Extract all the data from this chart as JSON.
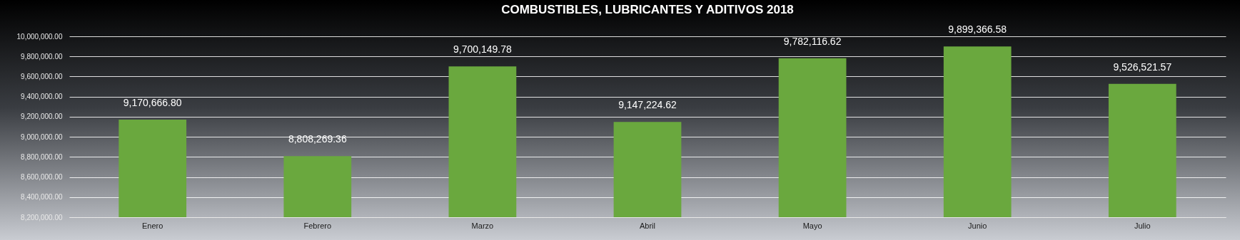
{
  "chart_data": {
    "type": "bar",
    "title": "COMBUSTIBLES, LUBRICANTES Y ADITIVOS 2018",
    "categories": [
      "Enero",
      "Febrero",
      "Marzo",
      "Abril",
      "Mayo",
      "Junio",
      "Julio"
    ],
    "values": [
      9170666.8,
      8808269.36,
      9700149.78,
      9147224.62,
      9782116.62,
      9899366.58,
      9526521.57
    ],
    "value_labels": [
      "9,170,666.80",
      "8,808,269.36",
      "9,700,149.78",
      "9,147,224.62",
      "9,782,116.62",
      "9,899,366.58",
      "9,526,521.57"
    ],
    "color": "#6aa83e",
    "ylim": [
      8200000,
      10000000
    ],
    "yticks": [
      {
        "value": 8200000,
        "label": "8,200,000.00"
      },
      {
        "value": 8400000,
        "label": "8,400,000.00"
      },
      {
        "value": 8600000,
        "label": "8,600,000.00"
      },
      {
        "value": 8800000,
        "label": "8,800,000.00"
      },
      {
        "value": 9000000,
        "label": "9,000,000.00"
      },
      {
        "value": 9200000,
        "label": "9,200,000.00"
      },
      {
        "value": 9400000,
        "label": "9,400,000.00"
      },
      {
        "value": 9600000,
        "label": "9,600,000.00"
      },
      {
        "value": 9800000,
        "label": "9,800,000.00"
      },
      {
        "value": 10000000,
        "label": "10,000,000.00"
      }
    ],
    "grid": "y"
  }
}
